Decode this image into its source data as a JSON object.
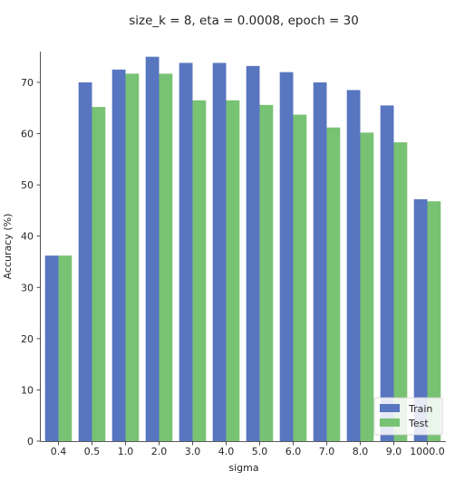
{
  "chart_data": {
    "type": "bar",
    "title": "size_k = 8, eta = 0.0008, epoch = 30",
    "xlabel": "sigma",
    "ylabel": "Accuracy (%)",
    "categories": [
      "0.4",
      "0.5",
      "1.0",
      "2.0",
      "3.0",
      "4.0",
      "5.0",
      "6.0",
      "7.0",
      "8.0",
      "9.0",
      "1000.0"
    ],
    "series": [
      {
        "name": "Train",
        "color": "#5875c0",
        "values": [
          36.2,
          70.0,
          72.5,
          75.0,
          73.8,
          73.8,
          73.2,
          72.0,
          70.0,
          68.5,
          65.5,
          47.2
        ]
      },
      {
        "name": "Test",
        "color": "#78c273",
        "values": [
          36.2,
          65.2,
          71.7,
          71.7,
          66.5,
          66.5,
          65.6,
          63.7,
          61.2,
          60.2,
          58.3,
          46.8
        ]
      }
    ],
    "ylim": [
      0,
      76
    ],
    "yticks": [
      0,
      10,
      20,
      30,
      40,
      50,
      60,
      70
    ],
    "grid": false,
    "legend_position": "bottom-right"
  }
}
